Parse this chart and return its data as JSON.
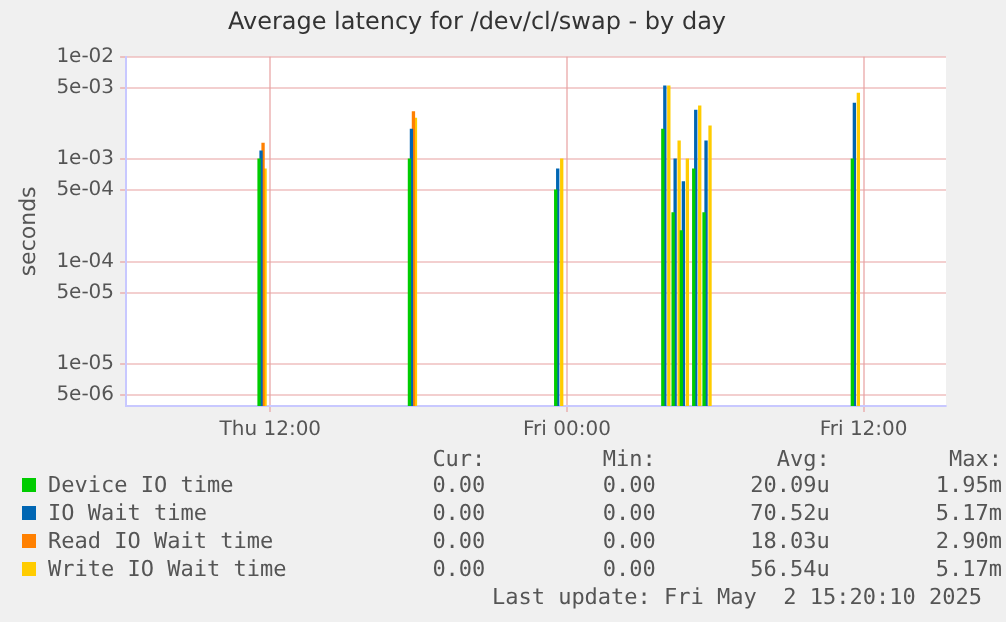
{
  "chart_data": {
    "type": "bar",
    "title": "Average latency for /dev/cl/swap - by day",
    "ylabel": "seconds",
    "x": [
      "2025-05-01T11:40",
      "2025-05-01T17:45",
      "2025-05-01T23:40",
      "2025-05-02T04:00",
      "2025-05-02T04:25",
      "2025-05-02T04:45",
      "2025-05-02T05:15",
      "2025-05-02T05:40",
      "2025-05-02T11:40"
    ],
    "series": [
      {
        "name": "Device IO time",
        "color": "#00cc00",
        "values": [
          0.001,
          0.001,
          0.0005,
          0.00195,
          0.0003,
          0.0002,
          0.0008,
          0.0003,
          0.001
        ]
      },
      {
        "name": "IO Wait time",
        "color": "#0066b3",
        "values": [
          0.0012,
          0.00196,
          0.0008,
          0.00517,
          0.001,
          0.0006,
          0.003,
          0.0015,
          0.0035
        ]
      },
      {
        "name": "Read IO Wait time",
        "color": "#ff8000",
        "values": [
          0.00143,
          0.0029,
          null,
          null,
          null,
          null,
          null,
          null,
          null
        ]
      },
      {
        "name": "Write IO Wait time",
        "color": "#ffcc00",
        "values": [
          0.0008,
          0.0025,
          0.001,
          0.00517,
          0.0015,
          0.001,
          0.0033,
          0.0021,
          0.0044
        ]
      }
    ],
    "log": "y",
    "ylim": [
      3.9e-06,
      0.01
    ],
    "yticks": [
      {
        "value": 0.01,
        "label": "1e-02"
      },
      {
        "value": 0.005,
        "label": "5e-03"
      },
      {
        "value": 0.001,
        "label": "1e-03"
      },
      {
        "value": 0.0005,
        "label": "5e-04"
      },
      {
        "value": 0.0001,
        "label": "1e-04"
      },
      {
        "value": 5e-05,
        "label": "5e-05"
      },
      {
        "value": 1e-05,
        "label": "1e-05"
      },
      {
        "value": 5e-06,
        "label": "5e-06"
      }
    ],
    "xlim": [
      "2025-05-01T06:10",
      "2025-05-02T15:20"
    ],
    "xticks": [
      {
        "value": "2025-05-01T12:00",
        "label": "Thu 12:00"
      },
      {
        "value": "2025-05-02T00:00",
        "label": "Fri 00:00"
      },
      {
        "value": "2025-05-02T12:00",
        "label": "Fri 12:00"
      }
    ],
    "grid": true,
    "legend": "bottom",
    "annotations": [
      "Cur:",
      "Min:",
      "Avg:",
      "Max:",
      "0.00",
      "0.00",
      "20.09u",
      "1.95m",
      "0.00",
      "0.00",
      "70.52u",
      "5.17m",
      "0.00",
      "0.00",
      "18.03u",
      "2.90m",
      "0.00",
      "0.00",
      "56.54u",
      "5.17m",
      "Last update: Fri May  2 15:20:10 2025"
    ]
  }
}
